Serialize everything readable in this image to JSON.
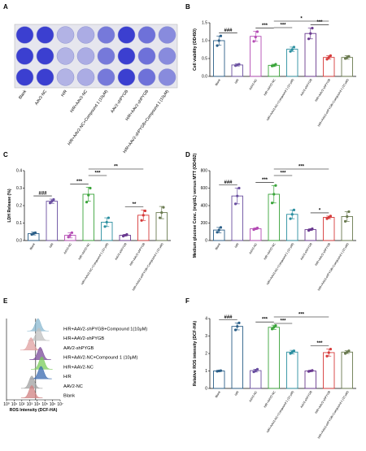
{
  "figure": {
    "panels": {
      "A": {
        "label": "A"
      },
      "B": {
        "label": "B"
      },
      "C": {
        "label": "C"
      },
      "D": {
        "label": "D"
      },
      "E": {
        "label": "E"
      },
      "F": {
        "label": "F"
      }
    }
  },
  "chart_data": [
    {
      "panel": "A",
      "type": "other",
      "description": "Crystal violet stained culture plate, 3 rows x 8 wells",
      "well_labels": [
        "Blank",
        "AAV2-NC",
        "H/R",
        "H/R+AAV2-NC",
        "H/R+AAV2-NC+Compound 1 (10μM)",
        "AAV2-shPYGB",
        "H/R+AAV2-shPYGB",
        "H/R+AAV2-shPYGB+Compound 1 (10μM)"
      ],
      "well_stain_intensity": [
        1.0,
        1.0,
        0.3,
        0.35,
        0.65,
        1.0,
        0.7,
        0.55
      ],
      "colors": {
        "stain": "#3b3fd0",
        "plate": "#e6e6ee"
      }
    },
    {
      "panel": "B",
      "type": "bar",
      "ylabel": "Cell viability (OD450)",
      "ylim": [
        0,
        1.5
      ],
      "yticks": [
        "0.0",
        "0.5",
        "1.0",
        "1.5"
      ],
      "categories": [
        "Blank",
        "H/R",
        "AAV2-NC",
        "H/R+AAV2-NC",
        "H/R+AAV2-NC+Compound 1 (10 μM)",
        "AAV2-shPYGB",
        "H/R+AAV2-shPYGB",
        "H/R+AAV2-shPYGB+Compound 1 (10 μM)"
      ],
      "values": [
        1.0,
        0.32,
        1.12,
        0.31,
        0.76,
        1.2,
        0.53,
        0.53
      ],
      "errors": [
        0.13,
        0.03,
        0.14,
        0.03,
        0.06,
        0.15,
        0.05,
        0.05
      ],
      "points": [
        [
          0.86,
          1.0,
          1.13
        ],
        [
          0.3,
          0.32,
          0.34
        ],
        [
          0.98,
          1.1,
          1.25
        ],
        [
          0.29,
          0.3,
          0.34
        ],
        [
          0.7,
          0.75,
          0.82
        ],
        [
          1.05,
          1.2,
          1.35
        ],
        [
          0.48,
          0.53,
          0.58
        ],
        [
          0.5,
          0.53,
          0.56
        ]
      ],
      "colors": [
        "#2b5f88",
        "#6a4fa0",
        "#b44cb4",
        "#3aa43a",
        "#2b8fa0",
        "#6a3a90",
        "#d63a3a",
        "#6a7a50"
      ],
      "significance": [
        {
          "from": 0,
          "to": 1,
          "label": "###",
          "level": 0
        },
        {
          "from": 2,
          "to": 3,
          "label": "***",
          "level": 0
        },
        {
          "from": 3,
          "to": 4,
          "label": "***",
          "level": 1
        },
        {
          "from": 3,
          "to": 6,
          "label": "*",
          "level": 2
        },
        {
          "from": 5,
          "to": 6,
          "label": "***",
          "level": 0
        }
      ]
    },
    {
      "panel": "C",
      "type": "bar",
      "ylabel": "LDH Release (%)",
      "ylim": [
        0,
        0.4
      ],
      "yticks": [
        "0.0",
        "0.1",
        "0.2",
        "0.3",
        "0.4"
      ],
      "categories": [
        "Blank",
        "H/R",
        "AAV2-NC",
        "H/R+AAV2-NC",
        "H/R+AAV2-NC+Compound 1 (10 μM)",
        "AAV2-shPYGB",
        "H/R+AAV2-shPYGB",
        "H/R+AAV2-shPYGB+Compound 1 (10 μM)"
      ],
      "values": [
        0.04,
        0.225,
        0.03,
        0.265,
        0.105,
        0.03,
        0.145,
        0.16
      ],
      "errors": [
        0.008,
        0.012,
        0.015,
        0.04,
        0.025,
        0.005,
        0.03,
        0.035
      ],
      "points": [
        [
          0.035,
          0.04,
          0.045
        ],
        [
          0.215,
          0.225,
          0.235
        ],
        [
          0.02,
          0.03,
          0.045
        ],
        [
          0.22,
          0.26,
          0.3
        ],
        [
          0.08,
          0.105,
          0.13
        ],
        [
          0.025,
          0.03,
          0.035
        ],
        [
          0.115,
          0.145,
          0.17
        ],
        [
          0.13,
          0.16,
          0.19
        ]
      ],
      "colors": [
        "#2b5f88",
        "#6a4fa0",
        "#b44cb4",
        "#3aa43a",
        "#2b8fa0",
        "#6a3a90",
        "#d63a3a",
        "#6a7a50"
      ],
      "significance": [
        {
          "from": 0,
          "to": 1,
          "label": "###",
          "level": 0
        },
        {
          "from": 2,
          "to": 3,
          "label": "***",
          "level": 0
        },
        {
          "from": 3,
          "to": 4,
          "label": "***",
          "level": 1
        },
        {
          "from": 3,
          "to": 6,
          "label": "**",
          "level": 2
        },
        {
          "from": 5,
          "to": 6,
          "label": "**",
          "level": 0
        }
      ]
    },
    {
      "panel": "D",
      "type": "bar",
      "ylabel": "Medium glucose Conc. (mg/dL) versus MTT (OD492)",
      "ylim": [
        0,
        800
      ],
      "yticks": [
        "0",
        "200",
        "400",
        "600",
        "800"
      ],
      "categories": [
        "Blank",
        "H/R",
        "AAV2-NC",
        "H/R+AAV2-NC",
        "H/R+AAV2-NC+Compound 1 (10 μM)",
        "AAV2-shPYGB",
        "H/R+AAV2-shPYGB",
        "H/R+AAV2-shPYGB+Compound 1 (10 μM)"
      ],
      "values": [
        120,
        510,
        135,
        530,
        300,
        125,
        265,
        275
      ],
      "errors": [
        30,
        90,
        10,
        100,
        50,
        10,
        15,
        55
      ],
      "points": [
        [
          95,
          120,
          150
        ],
        [
          420,
          510,
          600
        ],
        [
          125,
          135,
          145
        ],
        [
          430,
          530,
          630
        ],
        [
          250,
          300,
          350
        ],
        [
          115,
          125,
          135
        ],
        [
          250,
          265,
          280
        ],
        [
          220,
          275,
          330
        ]
      ],
      "colors": [
        "#2b5f88",
        "#6a4fa0",
        "#b44cb4",
        "#3aa43a",
        "#2b8fa0",
        "#6a3a90",
        "#d63a3a",
        "#6a7a50"
      ],
      "significance": [
        {
          "from": 0,
          "to": 1,
          "label": "###",
          "level": 0
        },
        {
          "from": 2,
          "to": 3,
          "label": "***",
          "level": 0
        },
        {
          "from": 3,
          "to": 4,
          "label": "***",
          "level": 1
        },
        {
          "from": 3,
          "to": 6,
          "label": "***",
          "level": 2
        },
        {
          "from": 5,
          "to": 6,
          "label": "*",
          "level": 0
        }
      ]
    },
    {
      "panel": "E",
      "type": "area",
      "xlabel": "ROS Intensity (DCF-HA)",
      "x_ticks": [
        "10⁰",
        "10¹",
        "10²",
        "10³",
        "10⁴",
        "10⁵",
        "10⁶",
        "10⁷"
      ],
      "legend_position": "right",
      "series": [
        {
          "name": "H/R+AAV2-shPYGB+Compound 1(10μM)",
          "color": "#8ab8d0",
          "peak_decade": 4.1
        },
        {
          "name": "H/R+AAV2-shPYGB",
          "color": "#c0c0c0",
          "peak_decade": 4.2
        },
        {
          "name": "AAV2-shPYGB",
          "color": "#e0a0a0",
          "peak_decade": 3.2
        },
        {
          "name": "H/R+AAV2-NC+Compound 1 (10μM)",
          "color": "#7a4a9a",
          "peak_decade": 4.4
        },
        {
          "name": "H/R+AAV2-NC",
          "color": "#7acc5a",
          "peak_decade": 4.6
        },
        {
          "name": "H/R",
          "color": "#3a6ab0",
          "peak_decade": 4.5
        },
        {
          "name": "AAV2-NC",
          "color": "#a0a0a0",
          "peak_decade": 3.3
        },
        {
          "name": "Blank",
          "color": "#d08080",
          "peak_decade": 3.3
        }
      ]
    },
    {
      "panel": "F",
      "type": "bar",
      "ylabel": "Relative ROS intensity (DCF-HA)",
      "ylim": [
        0,
        4
      ],
      "yticks": [
        "0",
        "1",
        "2",
        "3",
        "4"
      ],
      "categories": [
        "Blank",
        "H/R",
        "AAV2-NC",
        "H/R+AAV2-NC",
        "H/R+AAV2-NC+Compound 1 (10 μM)",
        "AAV2-shPYGB",
        "H/R+AAV2-shPYGB",
        "H/R+AAV2-shPYGB+Compound 1 (10 μM)"
      ],
      "values": [
        1.0,
        3.55,
        1.02,
        3.5,
        2.08,
        1.0,
        2.05,
        2.08
      ],
      "errors": [
        0.04,
        0.2,
        0.08,
        0.12,
        0.1,
        0.04,
        0.2,
        0.08
      ],
      "points": [
        [
          0.98,
          1.0,
          1.02
        ],
        [
          3.35,
          3.55,
          3.75
        ],
        [
          0.95,
          1.02,
          1.1
        ],
        [
          3.4,
          3.5,
          3.6
        ],
        [
          2.0,
          2.08,
          2.15
        ],
        [
          0.97,
          1.0,
          1.03
        ],
        [
          1.85,
          2.05,
          2.25
        ],
        [
          2.0,
          2.08,
          2.15
        ]
      ],
      "colors": [
        "#2b5f88",
        "#2b5f88",
        "#6a4fa0",
        "#3aa43a",
        "#2b8fa0",
        "#6a3a90",
        "#d63a3a",
        "#6a7a50"
      ],
      "significance": [
        {
          "from": 0,
          "to": 1,
          "label": "###",
          "level": 0
        },
        {
          "from": 2,
          "to": 3,
          "label": "***",
          "level": 0
        },
        {
          "from": 3,
          "to": 4,
          "label": "***",
          "level": 1
        },
        {
          "from": 3,
          "to": 6,
          "label": "***",
          "level": 2
        },
        {
          "from": 5,
          "to": 6,
          "label": "***",
          "level": 0
        }
      ]
    }
  ]
}
